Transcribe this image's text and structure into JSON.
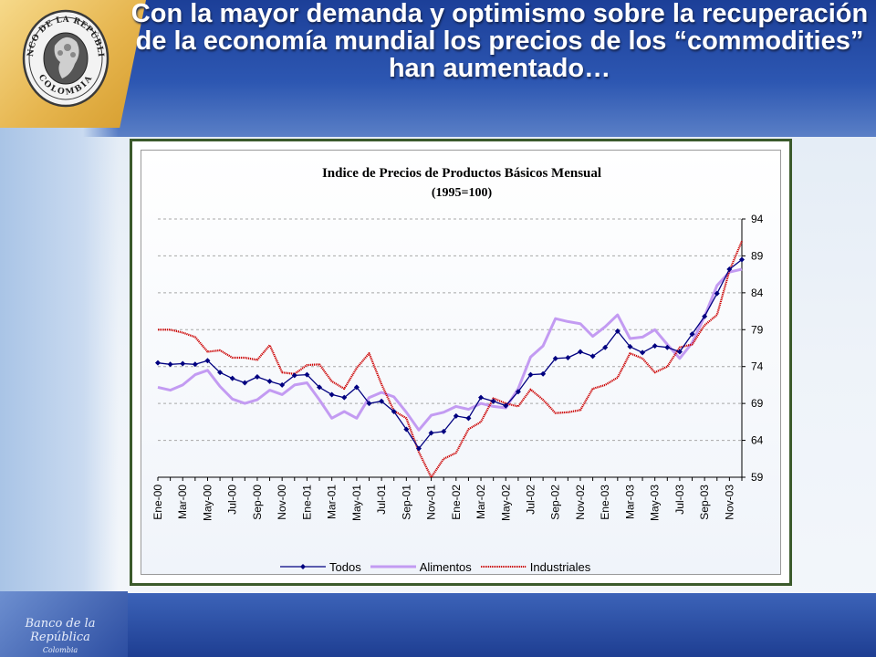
{
  "slide": {
    "title": "Con la mayor demanda y optimismo sobre la recuperación de la economía mundial los precios de los “commodities” han aumentado…",
    "seal_top_text": "BANCO DE LA REPÚBLICA",
    "seal_bottom_text": "COLOMBIA",
    "footer_line1": "Banco de la República",
    "footer_line2": "Colombia"
  },
  "colors": {
    "todos": "#000080",
    "alimentos": "#c39bf2",
    "industriales": "#cc0000"
  },
  "chart_data": {
    "type": "line",
    "title": "Indice de Precios de Productos Básicos Mensual",
    "subtitle": "(1995=100)",
    "ylim": [
      59,
      94
    ],
    "yticks": [
      59,
      64,
      69,
      74,
      79,
      84,
      89,
      94
    ],
    "y_axis_position": "right",
    "grid": "horizontal-dashed",
    "legend_position": "bottom",
    "x_tick_labels": [
      "Ene-00",
      "Mar-00",
      "May-00",
      "Jul-00",
      "Sep-00",
      "Nov-00",
      "Ene-01",
      "Mar-01",
      "May-01",
      "Jul-01",
      "Sep-01",
      "Nov-01",
      "Ene-02",
      "Mar-02",
      "May-02",
      "Jul-02",
      "Sep-02",
      "Nov-02",
      "Ene-03",
      "Mar-03",
      "May-03",
      "Jul-03",
      "Sep-03",
      "Nov-03"
    ],
    "x": [
      "Ene-00",
      "Feb-00",
      "Mar-00",
      "Abr-00",
      "May-00",
      "Jun-00",
      "Jul-00",
      "Ago-00",
      "Sep-00",
      "Oct-00",
      "Nov-00",
      "Dic-00",
      "Ene-01",
      "Feb-01",
      "Mar-01",
      "Abr-01",
      "May-01",
      "Jun-01",
      "Jul-01",
      "Ago-01",
      "Sep-01",
      "Oct-01",
      "Nov-01",
      "Dic-01",
      "Ene-02",
      "Feb-02",
      "Mar-02",
      "Abr-02",
      "May-02",
      "Jun-02",
      "Jul-02",
      "Ago-02",
      "Sep-02",
      "Oct-02",
      "Nov-02",
      "Dic-02",
      "Ene-03",
      "Feb-03",
      "Mar-03",
      "Abr-03",
      "May-03",
      "Jun-03",
      "Jul-03",
      "Ago-03",
      "Sep-03",
      "Oct-03",
      "Nov-03",
      "Dic-03"
    ],
    "series": [
      {
        "name": "Todos",
        "key": "todos",
        "marker": "diamond",
        "values": [
          74.5,
          74.3,
          74.4,
          74.3,
          74.8,
          73.2,
          72.4,
          71.8,
          72.6,
          72.0,
          71.5,
          72.8,
          72.9,
          71.2,
          70.2,
          69.8,
          71.2,
          69.0,
          69.3,
          67.9,
          65.5,
          62.9,
          65.0,
          65.2,
          67.3,
          67.0,
          69.8,
          69.3,
          68.7,
          70.6,
          72.9,
          73.0,
          75.1,
          75.2,
          76.0,
          75.4,
          76.6,
          78.8,
          76.7,
          75.9,
          76.8,
          76.6,
          76.0,
          78.4,
          80.8,
          83.9,
          87.2,
          88.5
        ]
      },
      {
        "name": "Alimentos",
        "key": "alimentos",
        "marker": "none",
        "values": [
          71.2,
          70.8,
          71.5,
          72.9,
          73.5,
          71.3,
          69.6,
          69.0,
          69.5,
          70.8,
          70.2,
          71.5,
          71.8,
          69.5,
          67.0,
          67.9,
          67.0,
          69.8,
          70.5,
          69.9,
          67.8,
          65.4,
          67.4,
          67.8,
          68.6,
          68.2,
          69.0,
          68.6,
          68.4,
          71.0,
          75.3,
          76.8,
          80.5,
          80.1,
          79.8,
          78.1,
          79.4,
          81.0,
          77.8,
          78.0,
          79.0,
          77.0,
          75.1,
          77.2,
          80.8,
          85.0,
          86.8,
          87.2
        ]
      },
      {
        "name": "Industriales",
        "key": "industriales",
        "marker": "none",
        "values": [
          79.0,
          79.0,
          78.6,
          78.0,
          76.0,
          76.2,
          75.2,
          75.2,
          74.9,
          76.9,
          73.2,
          73.0,
          74.2,
          74.3,
          72.0,
          71.0,
          73.8,
          75.8,
          71.6,
          68.0,
          67.0,
          62.4,
          59.0,
          61.5,
          62.3,
          65.5,
          66.5,
          69.7,
          69.0,
          68.6,
          70.9,
          69.5,
          67.7,
          67.8,
          68.1,
          71.0,
          71.5,
          72.5,
          75.8,
          75.1,
          73.2,
          74.0,
          76.6,
          77.0,
          79.6,
          81.0,
          87.0,
          91.0
        ]
      }
    ]
  }
}
